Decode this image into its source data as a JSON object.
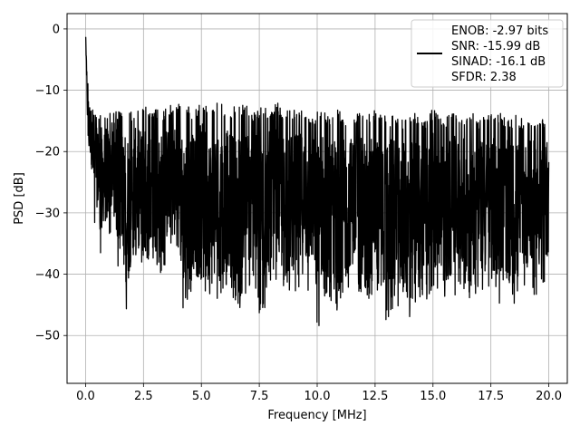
{
  "chart_data": {
    "type": "line",
    "title": "",
    "xlabel": "Frequency [MHz]",
    "ylabel": "PSD [dB]",
    "xlim": [
      -0.8,
      20.8
    ],
    "ylim": [
      -57.8,
      2.5
    ],
    "xticks": [
      0.0,
      2.5,
      5.0,
      7.5,
      10.0,
      12.5,
      15.0,
      17.5,
      20.0
    ],
    "xtick_labels": [
      "0.0",
      "2.5",
      "5.0",
      "7.5",
      "10.0",
      "12.5",
      "15.0",
      "17.5",
      "20.0"
    ],
    "yticks": [
      0,
      -10,
      -20,
      -30,
      -40,
      -50
    ],
    "ytick_labels": [
      "0",
      "−10",
      "−20",
      "−30",
      "−40",
      "−50"
    ],
    "grid": true,
    "legend_position": "top-right",
    "series": [
      {
        "legend_lines": [
          "ENOB: -2.97 bits",
          "SNR: -15.99 dB",
          "SINAD: -16.1 dB",
          "SFDR: 2.38"
        ],
        "color": "#000000",
        "x": [
          0.0,
          0.03,
          0.06,
          0.1,
          0.15,
          0.2,
          0.3,
          0.4,
          0.5,
          0.6,
          0.7,
          0.75,
          0.9,
          1.0,
          1.2,
          1.4,
          1.6,
          1.8,
          2.0,
          2.2,
          2.5,
          2.8,
          3.0,
          3.3,
          3.6,
          4.0,
          4.2,
          4.5,
          4.7,
          5.0,
          5.4,
          5.7,
          6.0,
          6.3,
          6.7,
          7.0,
          7.3,
          7.6,
          8.0,
          8.3,
          8.6,
          9.0,
          9.4,
          9.8,
          10.1,
          10.2,
          10.5,
          10.9,
          11.2,
          11.6,
          12.0,
          12.4,
          12.8,
          13.0,
          13.3,
          13.6,
          13.9,
          14.3,
          14.7,
          15.0,
          15.4,
          15.8,
          16.2,
          16.6,
          17.0,
          17.4,
          17.8,
          18.2,
          18.6,
          19.0,
          19.4,
          19.8,
          20.0
        ],
        "upper": [
          0.0,
          -3.0,
          -6.0,
          -8.0,
          -10.0,
          -11.0,
          -12.0,
          -13.5,
          -14.0,
          -13.5,
          -14.5,
          -14.0,
          -13.5,
          -13.0,
          -13.5,
          -13.0,
          -14.0,
          -12.5,
          -13.5,
          -13.0,
          -12.0,
          -13.5,
          -13.0,
          -13.5,
          -12.5,
          -12.0,
          -13.0,
          -12.5,
          -13.5,
          -11.5,
          -13.0,
          -12.0,
          -12.5,
          -13.0,
          -12.0,
          -12.5,
          -13.5,
          -12.5,
          -13.0,
          -12.0,
          -13.5,
          -13.0,
          -12.5,
          -14.0,
          -13.0,
          -12.5,
          -14.0,
          -13.0,
          -14.5,
          -13.5,
          -14.0,
          -13.0,
          -13.5,
          -14.5,
          -13.5,
          -15.0,
          -14.0,
          -13.5,
          -14.5,
          -13.0,
          -14.5,
          -13.5,
          -14.0,
          -13.5,
          -14.5,
          -14.0,
          -13.5,
          -14.5,
          -14.0,
          -15.0,
          -14.5,
          -14.5,
          -18.0
        ],
        "lower": [
          -6.0,
          -10.0,
          -12.0,
          -24.0,
          -20.0,
          -22.0,
          -26.0,
          -34.5,
          -31.0,
          -34.0,
          -40.5,
          -33.0,
          -35.0,
          -34.0,
          -32.0,
          -39.0,
          -38.0,
          -47.5,
          -40.0,
          -37.0,
          -42.0,
          -41.0,
          -39.5,
          -40.0,
          -37.0,
          -39.0,
          -46.0,
          -45.0,
          -40.0,
          -41.0,
          -46.5,
          -45.0,
          -42.0,
          -43.0,
          -49.5,
          -42.0,
          -45.0,
          -48.5,
          -41.0,
          -42.0,
          -45.0,
          -43.0,
          -44.0,
          -42.0,
          -55.0,
          -44.0,
          -48.5,
          -47.5,
          -43.0,
          -42.0,
          -44.0,
          -45.0,
          -42.0,
          -49.0,
          -46.0,
          -45.0,
          -49.0,
          -44.0,
          -45.0,
          -43.0,
          -43.5,
          -45.0,
          -42.0,
          -44.0,
          -43.0,
          -44.5,
          -45.0,
          -43.5,
          -46.5,
          -42.0,
          -44.0,
          -42.0,
          -38.5
        ],
        "mean_level": -25.0
      }
    ]
  }
}
